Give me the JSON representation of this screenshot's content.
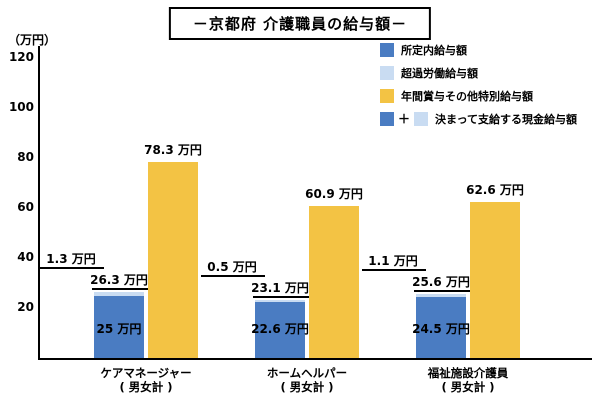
{
  "title": "－京都府 介護職員の給与額－",
  "y_axis_unit": "（万円）",
  "legend_items": [
    {
      "swatch_colors": [
        "#4a7cc2"
      ],
      "separator": "",
      "label": "所定内給与額"
    },
    {
      "swatch_colors": [
        "#c9dcf2"
      ],
      "separator": "",
      "label": "超過労働給与額"
    },
    {
      "swatch_colors": [
        "#f3c344"
      ],
      "separator": "",
      "label": "年間賞与その他特別給与額"
    },
    {
      "swatch_colors": [
        "#4a7cc2",
        "#c9dcf2"
      ],
      "separator": "＋",
      "label": "決まって支給する現金給与額"
    }
  ],
  "chart_data": {
    "type": "bar",
    "title": "－京都府 介護職員の給与額－",
    "unit": "万円",
    "categories": [
      {
        "name": "ケアマネージャー",
        "subtitle": "( 男女計 )"
      },
      {
        "name": "ホームヘルパー",
        "subtitle": "( 男女計 )"
      },
      {
        "name": "福祉施設介護員",
        "subtitle": "( 男女計 )"
      }
    ],
    "series": [
      {
        "name": "所定内給与額",
        "color": "#4a7cc2",
        "values": [
          25,
          22.6,
          24.5
        ],
        "labels": [
          "25 万円",
          "22.6 万円",
          "24.5 万円"
        ],
        "stacked": true
      },
      {
        "name": "超過労働給与額",
        "color": "#c9dcf2",
        "values": [
          1.3,
          0.5,
          1.1
        ],
        "labels": [
          "1.3 万円",
          "0.5 万円",
          "1.1 万円"
        ],
        "stacked": true
      },
      {
        "name": "年間賞与その他特別給与額",
        "color": "#f3c344",
        "values": [
          78.3,
          60.9,
          62.6
        ],
        "labels": [
          "78.3 万円",
          "60.9 万円",
          "62.6 万円"
        ],
        "stacked": false
      }
    ],
    "stack_totals": {
      "name": "決まって支給する現金給与額",
      "values": [
        26.3,
        23.1,
        25.6
      ],
      "labels": [
        "26.3 万円",
        "23.1 万円",
        "25.6 万円"
      ]
    },
    "ylabel": "（万円）",
    "ylim": [
      0,
      120
    ],
    "y_ticks": [
      20,
      40,
      60,
      80,
      100,
      120
    ],
    "grid": false,
    "legend_position": "top-right"
  }
}
